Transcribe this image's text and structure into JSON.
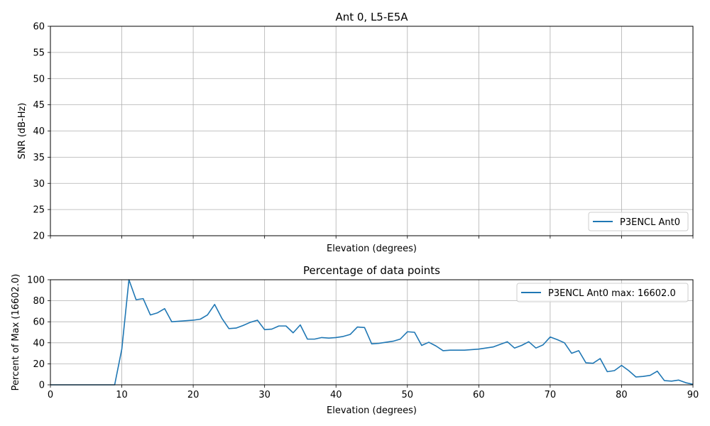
{
  "chart_data": [
    {
      "type": "line",
      "title": "Ant 0, L5-E5A",
      "xlabel": "Elevation (degrees)",
      "ylabel": "SNR (dB-Hz)",
      "xlim": [
        0,
        90
      ],
      "ylim": [
        20,
        60
      ],
      "x_ticks": [
        0,
        10,
        20,
        30,
        40,
        50,
        60,
        70,
        80,
        90
      ],
      "x_tick_labels_shown": false,
      "y_ticks": [
        "20",
        "25",
        "30",
        "35",
        "40",
        "45",
        "50",
        "55",
        "60"
      ],
      "grid": true,
      "legend_position": "lower-right",
      "series": [
        {
          "name": "P3ENCL Ant0",
          "color": "#1f77b4",
          "x": [],
          "y": []
        }
      ]
    },
    {
      "type": "line",
      "title": "Percentage of data points",
      "xlabel": "Elevation (degrees)",
      "ylabel": "Percent of Max (16602.0)",
      "xlim": [
        0,
        90
      ],
      "ylim": [
        0,
        100
      ],
      "x_ticks": [
        "0",
        "10",
        "20",
        "30",
        "40",
        "50",
        "60",
        "70",
        "80",
        "90"
      ],
      "y_ticks": [
        "0",
        "20",
        "40",
        "60",
        "80",
        "100"
      ],
      "grid": true,
      "legend_position": "upper-right",
      "series": [
        {
          "name": "P3ENCL Ant0 max: 16602.0",
          "color": "#1f77b4",
          "x": [
            0,
            1,
            2,
            3,
            4,
            5,
            6,
            7,
            8,
            9,
            10,
            11,
            12,
            13,
            14,
            15,
            16,
            17,
            18,
            19,
            20,
            21,
            22,
            23,
            24,
            25,
            26,
            27,
            28,
            29,
            30,
            31,
            32,
            33,
            34,
            35,
            36,
            37,
            38,
            39,
            40,
            41,
            42,
            43,
            44,
            45,
            46,
            47,
            48,
            49,
            50,
            51,
            52,
            53,
            54,
            55,
            56,
            57,
            58,
            59,
            60,
            61,
            62,
            63,
            64,
            65,
            66,
            67,
            68,
            69,
            70,
            71,
            72,
            73,
            74,
            75,
            76,
            77,
            78,
            79,
            80,
            81,
            82,
            83,
            84,
            85,
            86,
            87,
            88,
            89,
            90
          ],
          "y": [
            0,
            0,
            0,
            0,
            0,
            0,
            0,
            0,
            0,
            0,
            34,
            100,
            81,
            82,
            66.5,
            68.5,
            72.5,
            60,
            60.5,
            61,
            61.5,
            62.5,
            66.5,
            76.5,
            63.5,
            53.5,
            54,
            56.5,
            59.5,
            61.5,
            52.5,
            53,
            56,
            56,
            49.5,
            57,
            43.5,
            43.5,
            45,
            44.5,
            45,
            46,
            48,
            55,
            54.5,
            39,
            39.5,
            40.5,
            41.5,
            43.5,
            50.5,
            50,
            37.5,
            40.5,
            37,
            32.5,
            33,
            33,
            33,
            33.5,
            34,
            35,
            36,
            38.5,
            41,
            35,
            37.5,
            41,
            35,
            38,
            45.5,
            43,
            40,
            30,
            32.5,
            21,
            20.5,
            25,
            12.5,
            13.5,
            18.5,
            13.5,
            7.5,
            8,
            9,
            13,
            4,
            3.5,
            4.5,
            2,
            0.5
          ]
        }
      ]
    }
  ]
}
